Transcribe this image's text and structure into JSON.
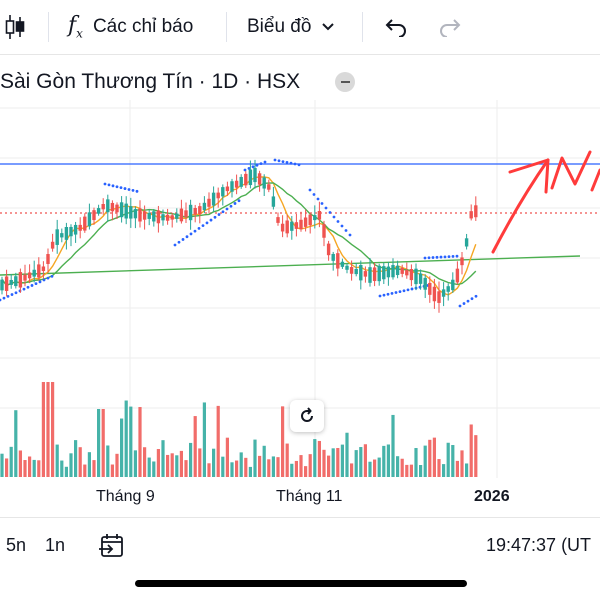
{
  "toolbar": {
    "indicators_label": "Các chỉ báo",
    "chart_type_label": "Biểu đồ"
  },
  "symbol": {
    "title": "Sài Gòn Thương Tín · 1D · HSX"
  },
  "chart_data": {
    "type": "candlestick",
    "x_labels": [
      "Tháng 9",
      "Tháng 11",
      "2026"
    ],
    "horizontal_lines": [
      "blue resistance line",
      "red dotted current price line"
    ],
    "overlays": [
      "moving averages",
      "parabolic SAR",
      "green trend line",
      "hand-drawn red arrow"
    ],
    "volume_panel": true
  },
  "colors": {
    "up": "#26a69a",
    "down": "#ef5350",
    "resistance": "#2962ff",
    "trend": "#4caf50",
    "sar": "#2962ff",
    "ma_orange": "#f5a623",
    "annotation": "#ff3b3b"
  },
  "bottombar": {
    "range_5n": "5n",
    "range_1n": "1n",
    "clock": "19:47:37 (UT"
  }
}
